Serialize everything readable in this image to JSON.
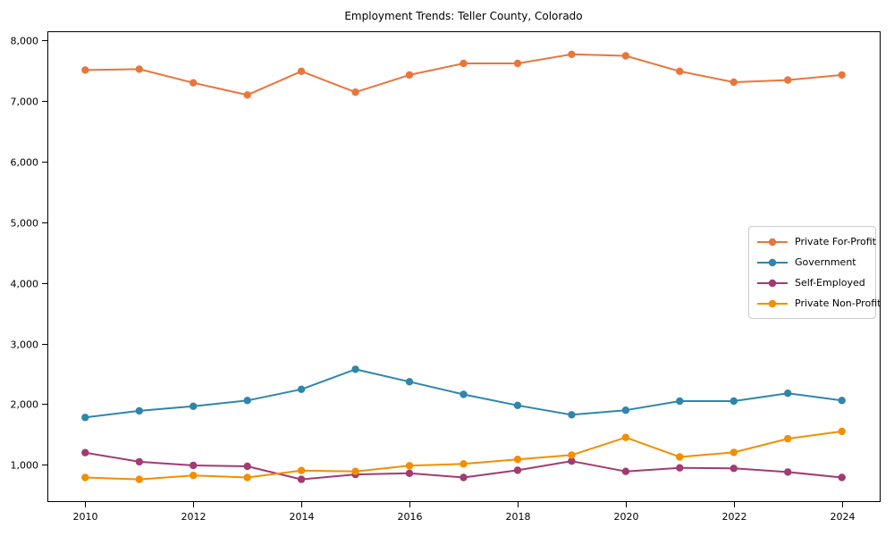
{
  "chart_data": {
    "type": "line",
    "title": "Employment Trends: Teller County, Colorado",
    "xlabel": "",
    "ylabel": "",
    "x": [
      2010,
      2011,
      2012,
      2013,
      2014,
      2015,
      2016,
      2017,
      2018,
      2019,
      2020,
      2021,
      2022,
      2023,
      2024
    ],
    "series": [
      {
        "name": "Private For-Profit",
        "color": "#E8763C",
        "values": [
          7510,
          7525,
          7300,
          7100,
          7490,
          7145,
          7430,
          7620,
          7620,
          7770,
          7745,
          7490,
          7310,
          7345,
          7430
        ]
      },
      {
        "name": "Government",
        "color": "#2E86AB",
        "values": [
          1780,
          1890,
          1965,
          2060,
          2245,
          2575,
          2370,
          2160,
          1980,
          1825,
          1900,
          2050,
          2050,
          2180,
          2060
        ]
      },
      {
        "name": "Self-Employed",
        "color": "#A23B72",
        "values": [
          1200,
          1050,
          990,
          975,
          760,
          840,
          860,
          790,
          910,
          1060,
          890,
          950,
          940,
          880,
          790
        ]
      },
      {
        "name": "Private Non-Profit",
        "color": "#F18F01",
        "values": [
          790,
          760,
          825,
          790,
          905,
          890,
          985,
          1015,
          1090,
          1160,
          1450,
          1130,
          1205,
          1430,
          1550
        ]
      }
    ],
    "xticks": {
      "values": [
        2010,
        2012,
        2014,
        2016,
        2018,
        2020,
        2022,
        2024
      ],
      "labels": [
        "2010",
        "2012",
        "2014",
        "2016",
        "2018",
        "2020",
        "2022",
        "2024"
      ]
    },
    "yticks": {
      "values": [
        1000,
        2000,
        3000,
        4000,
        5000,
        6000,
        7000,
        8000
      ],
      "labels": [
        "1,000",
        "2,000",
        "3,000",
        "4,000",
        "5,000",
        "6,000",
        "7,000",
        "8,000"
      ]
    },
    "xlim": [
      2009.3,
      2024.7
    ],
    "ylim": [
      400,
      8150
    ],
    "grid": false,
    "legend_position": "center-right",
    "marker": "circle",
    "frame_color": "#000000",
    "background": "#ffffff"
  }
}
